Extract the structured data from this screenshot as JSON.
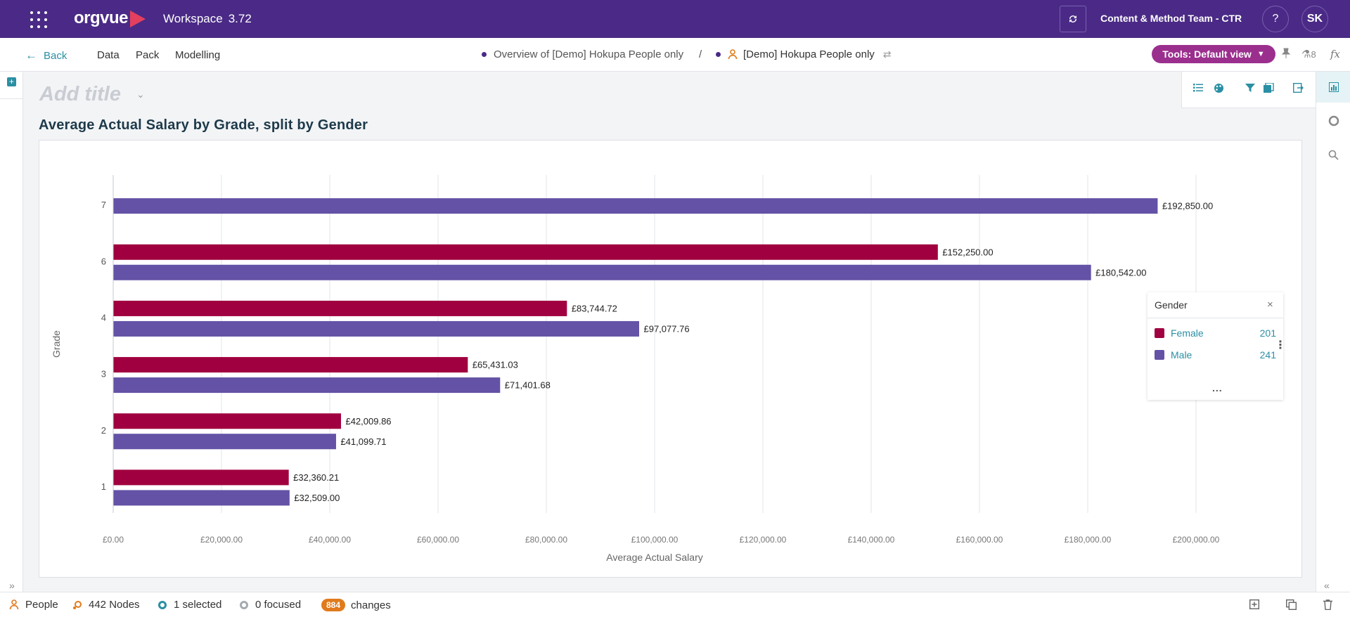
{
  "topbar": {
    "brand": "orgvue",
    "workspace_label": "Workspace",
    "version": "3.72",
    "team": "Content & Method Team - CTR",
    "help": "?",
    "user_initials": "SK"
  },
  "navbar": {
    "back": "Back",
    "menu": [
      "Data",
      "Pack",
      "Modelling"
    ],
    "crumb_1": "Overview of [Demo] Hokupa People only",
    "crumb_sep": "/",
    "crumb_2": "[Demo] Hokupa People only",
    "tools_button": "Tools: Default view",
    "filter_count": "8",
    "fx": "fx"
  },
  "page": {
    "add_title_placeholder": "Add title",
    "chart_heading": "Average Actual Salary by Grade, split by Gender"
  },
  "legend": {
    "title": "Gender",
    "close": "×",
    "items": [
      {
        "label": "Female",
        "count": "201",
        "color": "#a0003f"
      },
      {
        "label": "Male",
        "count": "241",
        "color": "#6352a6"
      }
    ],
    "more": "..."
  },
  "chart_data": {
    "type": "bar",
    "orientation": "horizontal",
    "title": "Average Actual Salary by Grade, split by Gender",
    "xlabel": "Average Actual Salary",
    "ylabel": "Grade",
    "xlim": [
      0,
      200000
    ],
    "xticks": [
      0,
      20000,
      40000,
      60000,
      80000,
      100000,
      120000,
      140000,
      160000,
      180000,
      200000
    ],
    "xtick_labels": [
      "£0.00",
      "£20,000.00",
      "£40,000.00",
      "£60,000.00",
      "£80,000.00",
      "£100,000.00",
      "£120,000.00",
      "£140,000.00",
      "£160,000.00",
      "£180,000.00",
      "£200,000.00"
    ],
    "categories": [
      "7",
      "6",
      "4",
      "3",
      "2",
      "1"
    ],
    "series": [
      {
        "name": "Female",
        "color": "#a0003f",
        "values": [
          null,
          152250.0,
          83744.72,
          65431.03,
          42009.86,
          32360.21
        ],
        "labels": [
          "",
          "£152,250.00",
          "£83,744.72",
          "£65,431.03",
          "£42,009.86",
          "£32,360.21"
        ]
      },
      {
        "name": "Male",
        "color": "#6352a6",
        "values": [
          192850.0,
          180542.0,
          97077.76,
          71401.68,
          41099.71,
          32509.0
        ],
        "labels": [
          "£192,850.00",
          "£180,542.00",
          "£97,077.76",
          "£71,401.68",
          "£41,099.71",
          "£32,509.00"
        ]
      }
    ],
    "grid": true,
    "legend_position": "right"
  },
  "status": {
    "dataset": "People",
    "nodes": "442 Nodes",
    "selected": "1 selected",
    "focused": "0 focused",
    "changes_count": "884",
    "changes_label": "changes"
  }
}
